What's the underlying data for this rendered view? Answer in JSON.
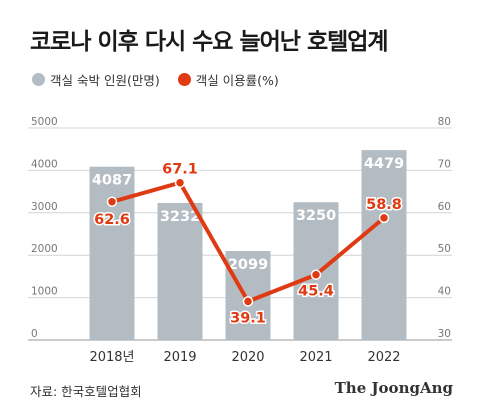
{
  "title": "코로나 이후 다시 수요 늘어난 호텔업계",
  "legend": [
    {
      "label": "객실 숙박 인원(만명)",
      "color": "#b3bcc3"
    },
    {
      "label": "객실 이용률(%)",
      "color": "#e03a12"
    }
  ],
  "source": "자료: 한국호텔업협회",
  "brand": "The JoongAng",
  "chart_data": {
    "type": "bar",
    "categories": [
      "2018년",
      "2019",
      "2020",
      "2021",
      "2022"
    ],
    "series": [
      {
        "name": "객실 숙박 인원(만명)",
        "type": "bar",
        "axis": "left",
        "values": [
          4087,
          3232,
          2099,
          3250,
          4479
        ],
        "value_labels": [
          "4087",
          "3232",
          "2099",
          "3250",
          "4479"
        ],
        "color": "#b3bcc3",
        "label_color": "#ffffff"
      },
      {
        "name": "객실 이용률(%)",
        "type": "line",
        "axis": "right",
        "values": [
          62.6,
          67.1,
          39.1,
          45.4,
          58.8
        ],
        "value_labels": [
          "62.6",
          "67.1",
          "39.1",
          "45.4",
          "58.8"
        ],
        "color": "#e03a12"
      }
    ],
    "y_left": {
      "range": [
        0,
        5000
      ],
      "ticks": [
        "0",
        "1000",
        "2000",
        "3000",
        "4000",
        "5000"
      ]
    },
    "y_right": {
      "range": [
        30,
        80
      ],
      "ticks": [
        "30",
        "40",
        "50",
        "60",
        "70",
        "80"
      ]
    },
    "grid": true
  }
}
